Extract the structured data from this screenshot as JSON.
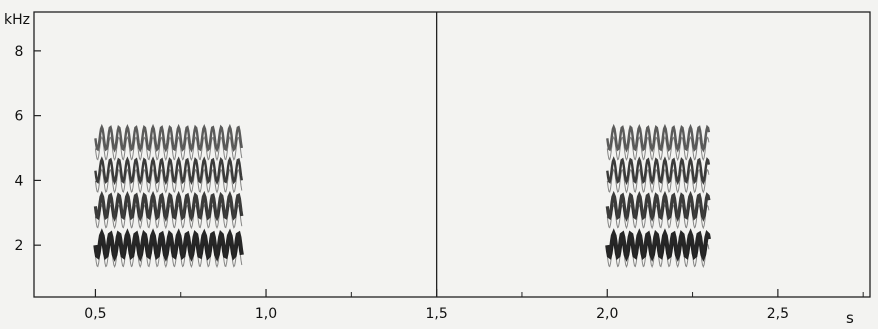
{
  "chart_data": {
    "type": "spectrogram",
    "title": "",
    "xlabel": "s",
    "ylabel": "kHz",
    "xlim": [
      0.32,
      2.77
    ],
    "ylim": [
      0.4,
      9.2
    ],
    "x_ticks": [
      0.5,
      1.0,
      1.5,
      2.0,
      2.5
    ],
    "x_tick_labels": [
      "0,5",
      "1,0",
      "1,5",
      "2,0",
      "2,5"
    ],
    "y_ticks": [
      2,
      4,
      6,
      8
    ],
    "y_tick_labels": [
      "2",
      "4",
      "6",
      "8"
    ],
    "grid": "none",
    "vertical_markers_s": [
      1.5
    ],
    "series": [
      {
        "start_s": 0.5,
        "end_s": 0.93,
        "harmonics_khz": [
          2.0,
          3.2,
          4.3,
          5.3
        ],
        "modulation_depth_khz": 0.35,
        "pulse_rate_hz": 40
      },
      {
        "start_s": 2.0,
        "end_s": 2.3,
        "harmonics_khz": [
          2.0,
          3.2,
          4.3,
          5.3
        ],
        "modulation_depth_khz": 0.35,
        "pulse_rate_hz": 40
      }
    ]
  }
}
